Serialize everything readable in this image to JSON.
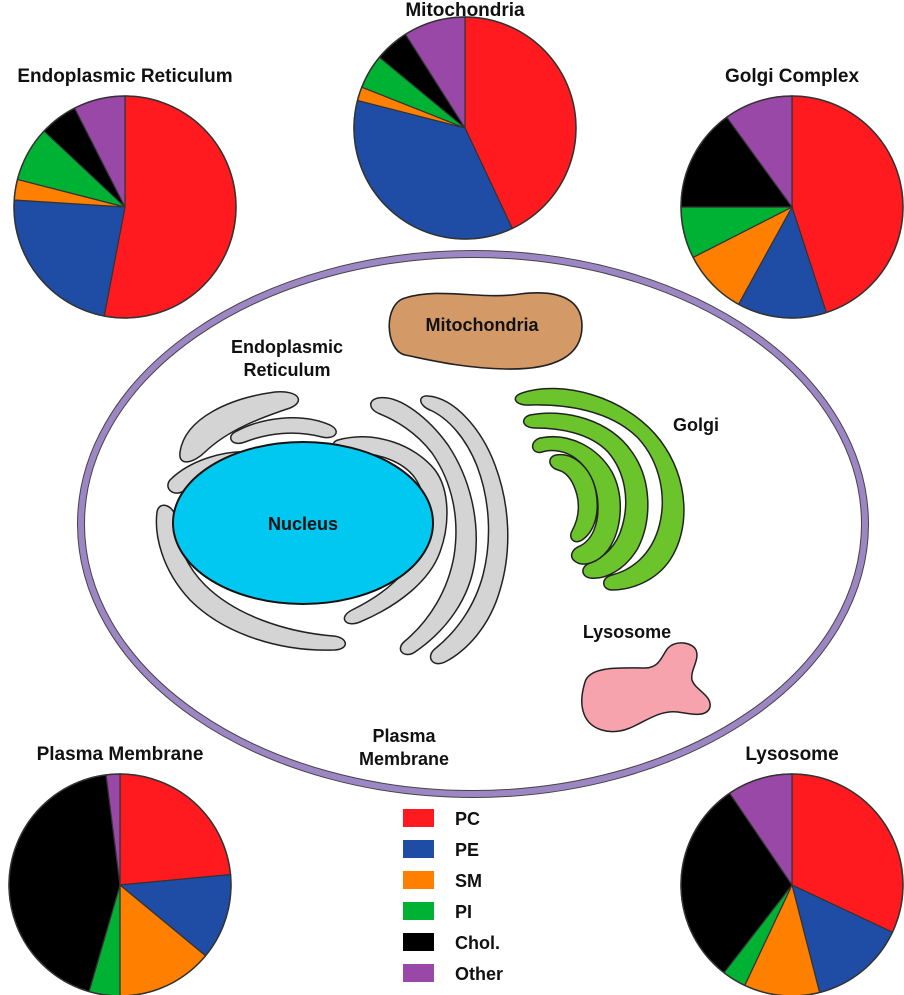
{
  "colors": {
    "PC": "#ff1a1f",
    "PE": "#1f4da6",
    "SM": "#ff8000",
    "PI": "#00b233",
    "Chol.": "#000000",
    "Other": "#9a48a8",
    "cell_membrane": "#9d86c4",
    "mitochondria": "#d39a68",
    "er": "#d4d4d4",
    "nucleus": "#00c8f0",
    "golgi": "#6cc42c",
    "lysosome": "#f7a3ad"
  },
  "legend": {
    "items": [
      {
        "key": "PC",
        "label": "PC"
      },
      {
        "key": "PE",
        "label": "PE"
      },
      {
        "key": "SM",
        "label": "SM"
      },
      {
        "key": "PI",
        "label": "PI"
      },
      {
        "key": "Chol.",
        "label": "Chol."
      },
      {
        "key": "Other",
        "label": "Other"
      }
    ]
  },
  "cell": {
    "labels": {
      "mitochondria": "Mitochondria",
      "er_line1": "Endoplasmic",
      "er_line2": "Reticulum",
      "golgi": "Golgi",
      "nucleus": "Nucleus",
      "lysosome": "Lysosome",
      "pm_line1": "Plasma",
      "pm_line2": "Membrane"
    }
  },
  "chart_data": [
    {
      "type": "pie",
      "title": "Endoplasmic Reticulum",
      "categories": [
        "PC",
        "PE",
        "SM",
        "PI",
        "Chol.",
        "Other"
      ],
      "values": [
        53,
        23,
        3,
        8,
        5.5,
        7.5
      ]
    },
    {
      "type": "pie",
      "title": "Mitochondria",
      "categories": [
        "PC",
        "PE",
        "SM",
        "PI",
        "Chol.",
        "Other"
      ],
      "values": [
        43,
        36,
        2,
        5,
        5,
        9
      ]
    },
    {
      "type": "pie",
      "title": "Golgi Complex",
      "categories": [
        "PC",
        "PE",
        "SM",
        "PI",
        "Chol.",
        "Other"
      ],
      "values": [
        45,
        13,
        9.5,
        7.5,
        15,
        10
      ]
    },
    {
      "type": "pie",
      "title": "Plasma Membrane",
      "categories": [
        "PC",
        "PE",
        "SM",
        "PI",
        "Chol.",
        "Other"
      ],
      "values": [
        23.5,
        12.5,
        14,
        4.5,
        43.5,
        2
      ]
    },
    {
      "type": "pie",
      "title": "Lysosome",
      "categories": [
        "PC",
        "PE",
        "SM",
        "PI",
        "Chol.",
        "Other"
      ],
      "values": [
        32,
        14,
        11,
        3.5,
        30,
        9.5
      ]
    }
  ]
}
